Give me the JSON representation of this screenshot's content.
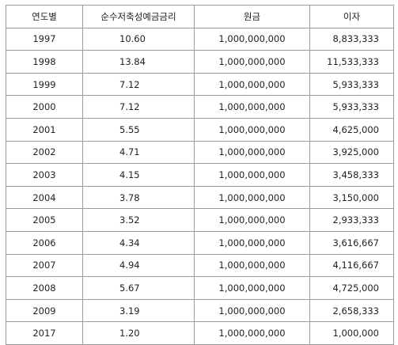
{
  "table": {
    "headers": [
      "연도별",
      "순수저축성예금금리",
      "원금",
      "이자"
    ],
    "rows": [
      [
        "1997",
        "10.60",
        "1,000,000,000",
        "8,833,333"
      ],
      [
        "1998",
        "13.84",
        "1,000,000,000",
        "11,533,333"
      ],
      [
        "1999",
        "7.12",
        "1,000,000,000",
        "5,933,333"
      ],
      [
        "2000",
        "7.12",
        "1,000,000,000",
        "5,933,333"
      ],
      [
        "2001",
        "5.55",
        "1,000,000,000",
        "4,625,000"
      ],
      [
        "2002",
        "4.71",
        "1,000,000,000",
        "3,925,000"
      ],
      [
        "2003",
        "4.15",
        "1,000,000,000",
        "3,458,333"
      ],
      [
        "2004",
        "3.78",
        "1,000,000,000",
        "3,150,000"
      ],
      [
        "2005",
        "3.52",
        "1,000,000,000",
        "2,933,333"
      ],
      [
        "2006",
        "4.34",
        "1,000,000,000",
        "3,616,667"
      ],
      [
        "2007",
        "4.94",
        "1,000,000,000",
        "4,116,667"
      ],
      [
        "2008",
        "5.67",
        "1,000,000,000",
        "4,725,000"
      ],
      [
        "2009",
        "3.19",
        "1,000,000,000",
        "2,658,333"
      ],
      [
        "2017",
        "1.20",
        "1,000,000,000",
        "1,000,000"
      ]
    ]
  }
}
